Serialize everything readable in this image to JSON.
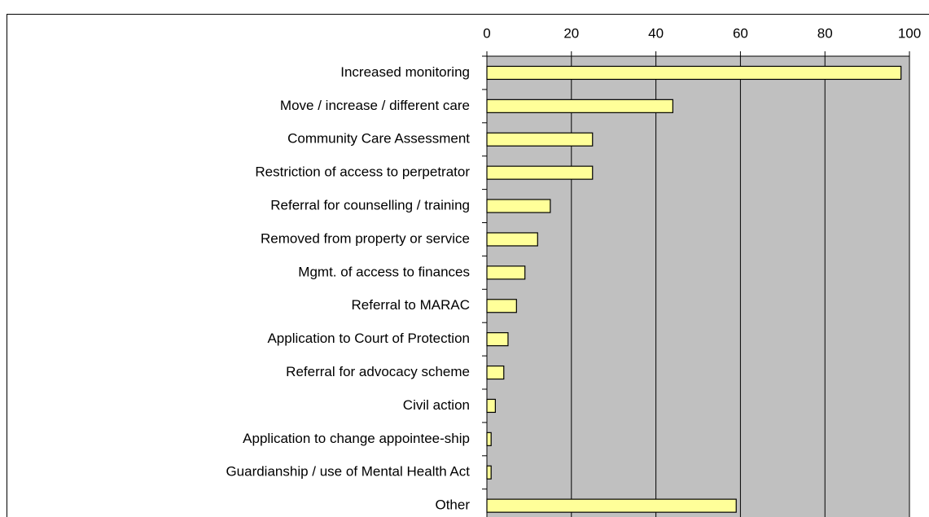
{
  "chart_data": {
    "type": "bar",
    "orientation": "horizontal",
    "categories": [
      "Increased monitoring",
      "Move / increase / different care",
      "Community Care Assessment",
      "Restriction of access to perpetrator",
      "Referral for counselling / training",
      "Removed from property or service",
      "Mgmt. of access to finances",
      "Referral to MARAC",
      "Application to Court of Protection",
      "Referral for advocacy scheme",
      "Civil action",
      "Application to change appointee-ship",
      "Guardianship / use of Mental Health Act",
      "Other"
    ],
    "values": [
      98,
      44,
      25,
      25,
      15,
      12,
      9,
      7,
      5,
      4,
      2,
      1,
      1,
      59
    ],
    "color": "#ffff99",
    "xlim": [
      0,
      100
    ],
    "xticks": [
      0,
      20,
      40,
      60,
      80,
      100
    ],
    "grid": true
  }
}
